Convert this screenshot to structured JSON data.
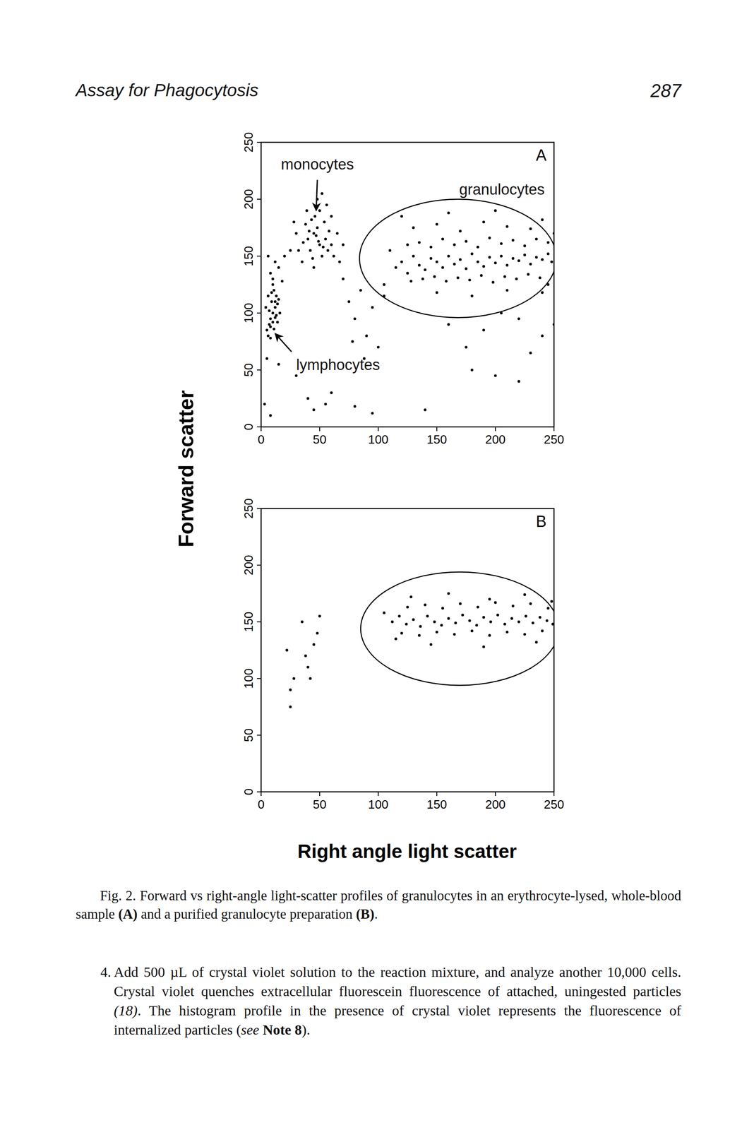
{
  "header": {
    "title": "Assay for Phagocytosis",
    "page": "287"
  },
  "figure": {
    "x_label": "Right angle light scatter",
    "y_label": "Forward scatter"
  },
  "chart_data": [
    {
      "type": "scatter",
      "panel": "A",
      "xlim": [
        0,
        250
      ],
      "ylim": [
        0,
        250
      ],
      "xticks": [
        0,
        50,
        100,
        150,
        200,
        250
      ],
      "yticks": [
        0,
        50,
        100,
        150,
        200,
        250
      ],
      "annotations": [
        "monocytes",
        "granulocytes",
        "lymphocytes"
      ],
      "gate": {
        "x": [
          84,
          252
        ],
        "y": [
          96,
          200
        ]
      },
      "x": [
        5,
        7,
        8,
        10,
        12,
        9,
        6,
        11,
        14,
        13,
        8,
        10,
        15,
        7,
        12,
        9,
        11,
        6,
        13,
        16,
        4,
        10,
        8,
        14,
        12,
        10,
        15,
        8,
        20,
        12,
        18,
        25,
        6,
        40,
        45,
        50,
        55,
        48,
        42,
        52,
        58,
        46,
        38,
        60,
        44,
        54,
        36,
        62,
        50,
        47,
        53,
        41,
        57,
        49,
        43,
        35,
        65,
        30,
        56,
        48,
        39,
        67,
        70,
        32,
        45,
        60,
        52,
        28,
        75,
        80,
        85,
        90,
        70,
        95,
        100,
        88,
        78,
        105,
        3,
        8,
        15,
        40,
        45,
        55,
        60,
        80,
        95,
        140,
        200,
        180,
        220,
        5,
        30,
        115,
        120,
        125,
        130,
        135,
        140,
        145,
        150,
        155,
        160,
        165,
        170,
        175,
        180,
        185,
        190,
        195,
        200,
        205,
        210,
        215,
        220,
        225,
        230,
        235,
        240,
        245,
        248,
        128,
        138,
        148,
        158,
        168,
        178,
        188,
        198,
        208,
        218,
        228,
        238,
        125,
        135,
        145,
        155,
        165,
        175,
        185,
        195,
        205,
        215,
        225,
        235,
        245,
        130,
        150,
        170,
        190,
        210,
        230,
        150,
        180,
        210,
        240,
        120,
        160,
        200,
        240,
        105,
        110,
        250,
        245,
        160,
        190,
        220,
        240,
        175,
        230,
        205,
        250
      ],
      "y": [
        85,
        90,
        95,
        100,
        105,
        110,
        115,
        120,
        108,
        98,
        88,
        92,
        112,
        102,
        96,
        118,
        86,
        80,
        115,
        100,
        105,
        125,
        78,
        92,
        110,
        130,
        140,
        135,
        150,
        145,
        128,
        155,
        150,
        165,
        170,
        160,
        165,
        175,
        155,
        150,
        172,
        185,
        178,
        160,
        148,
        180,
        162,
        150,
        190,
        168,
        158,
        172,
        155,
        163,
        182,
        145,
        170,
        170,
        195,
        200,
        190,
        145,
        160,
        155,
        140,
        185,
        205,
        180,
        110,
        95,
        120,
        80,
        130,
        105,
        70,
        60,
        75,
        115,
        20,
        10,
        55,
        25,
        15,
        20,
        30,
        18,
        12,
        15,
        45,
        50,
        40,
        60,
        45,
        140,
        145,
        135,
        150,
        142,
        138,
        148,
        145,
        140,
        150,
        143,
        147,
        139,
        152,
        145,
        141,
        149,
        144,
        150,
        142,
        148,
        146,
        151,
        143,
        149,
        147,
        152,
        145,
        128,
        130,
        132,
        128,
        131,
        129,
        133,
        127,
        132,
        130,
        134,
        131,
        160,
        162,
        158,
        165,
        160,
        163,
        158,
        166,
        161,
        164,
        159,
        165,
        162,
        175,
        178,
        172,
        180,
        176,
        174,
        118,
        115,
        120,
        118,
        185,
        188,
        190,
        182,
        125,
        155,
        170,
        125,
        90,
        85,
        95,
        80,
        70,
        65,
        100,
        90
      ]
    },
    {
      "type": "scatter",
      "panel": "B",
      "xlim": [
        0,
        250
      ],
      "ylim": [
        0,
        250
      ],
      "xticks": [
        0,
        50,
        100,
        150,
        200,
        250
      ],
      "yticks": [
        0,
        50,
        100,
        150,
        200,
        250
      ],
      "gate": {
        "x": [
          85,
          254
        ],
        "y": [
          94,
          194
        ]
      },
      "x": [
        25,
        25,
        28,
        40,
        38,
        42,
        45,
        48,
        22,
        35,
        50,
        112,
        118,
        124,
        130,
        136,
        142,
        148,
        154,
        160,
        166,
        172,
        178,
        184,
        190,
        196,
        202,
        208,
        214,
        220,
        226,
        232,
        238,
        244,
        249,
        120,
        135,
        150,
        165,
        180,
        195,
        210,
        225,
        240,
        125,
        140,
        155,
        170,
        185,
        200,
        215,
        230,
        245,
        128,
        160,
        195,
        225,
        145,
        190,
        235,
        248,
        105,
        115
      ],
      "y": [
        75,
        90,
        100,
        110,
        120,
        100,
        130,
        140,
        125,
        150,
        155,
        150,
        155,
        148,
        152,
        146,
        155,
        150,
        147,
        153,
        149,
        156,
        151,
        147,
        154,
        150,
        156,
        148,
        153,
        150,
        155,
        149,
        154,
        151,
        148,
        140,
        138,
        141,
        139,
        142,
        138,
        141,
        139,
        142,
        163,
        165,
        162,
        166,
        163,
        167,
        164,
        166,
        162,
        172,
        175,
        170,
        174,
        130,
        128,
        132,
        168,
        158,
        135
      ]
    }
  ],
  "caption": {
    "runs": [
      {
        "text": "Fig. 2. Forward vs right-angle light-scatter profiles of granulocytes in an erythrocyte-lysed, whole-blood sample ",
        "style": "normal"
      },
      {
        "text": "(A)",
        "style": "bold"
      },
      {
        "text": " and a purified granulocyte preparation ",
        "style": "normal"
      },
      {
        "text": "(B)",
        "style": "bold"
      },
      {
        "text": ".",
        "style": "normal"
      }
    ]
  },
  "body": {
    "items": [
      {
        "number": "4.",
        "runs": [
          {
            "text": "Add 500 µL of crystal violet solution to the reaction mixture, and analyze another 10,000 cells. Crystal violet quenches extracellular fluorescein fluorescence of attached, uningested particles ",
            "style": "normal"
          },
          {
            "text": "(18)",
            "style": "italic"
          },
          {
            "text": ". The histogram profile in the presence of crystal violet represents the fluorescence of internalized particles (",
            "style": "normal"
          },
          {
            "text": "see",
            "style": "italic"
          },
          {
            "text": " ",
            "style": "normal"
          },
          {
            "text": "Note 8",
            "style": "bold"
          },
          {
            "text": ").",
            "style": "normal"
          }
        ]
      }
    ]
  }
}
